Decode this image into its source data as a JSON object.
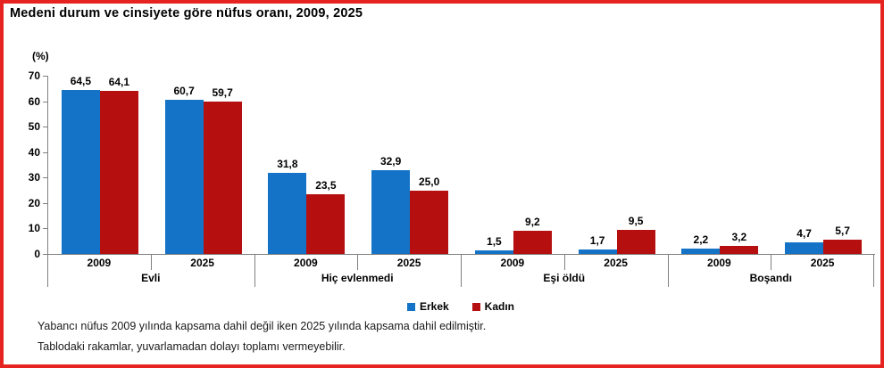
{
  "title": "Medeni durum ve cinsiyete göre nüfus oranı, 2009, 2025",
  "y_unit": "(%)",
  "colors": {
    "erkek": "#1473c6",
    "kadin": "#b50f10",
    "frame_border": "#e5231f",
    "axis": "#808080"
  },
  "legend": {
    "items": [
      {
        "label": "Erkek",
        "color": "#1473c6"
      },
      {
        "label": "Kadın",
        "color": "#b50f10"
      }
    ]
  },
  "footnotes": [
    "Yabancı nüfus 2009 yılında kapsama dahil değil iken 2025 yılında kapsama dahil edilmiştir.",
    "Tablodaki rakamlar, yuvarlamadan dolayı toplamı vermeyebilir."
  ],
  "chart_data": {
    "type": "bar",
    "title": "Medeni durum ve cinsiyete göre nüfus oranı, 2009, 2025",
    "ylabel": "(%)",
    "ylim": [
      0,
      70
    ],
    "yticks": [
      0,
      10,
      20,
      30,
      40,
      50,
      60,
      70
    ],
    "grid": false,
    "legend_position": "bottom-center",
    "series_names": [
      "Erkek",
      "Kadın"
    ],
    "groups": [
      {
        "label": "Evli",
        "cells": [
          {
            "year": "2009",
            "values": [
              64.5,
              64.1
            ],
            "labels": [
              "64,5",
              "64,1"
            ]
          },
          {
            "year": "2025",
            "values": [
              60.7,
              59.7
            ],
            "labels": [
              "60,7",
              "59,7"
            ]
          }
        ]
      },
      {
        "label": "Hiç evlenmedi",
        "cells": [
          {
            "year": "2009",
            "values": [
              31.8,
              23.5
            ],
            "labels": [
              "31,8",
              "23,5"
            ]
          },
          {
            "year": "2025",
            "values": [
              32.9,
              25.0
            ],
            "labels": [
              "32,9",
              "25,0"
            ]
          }
        ]
      },
      {
        "label": "Eşi öldü",
        "cells": [
          {
            "year": "2009",
            "values": [
              1.5,
              9.2
            ],
            "labels": [
              "1,5",
              "9,2"
            ]
          },
          {
            "year": "2025",
            "values": [
              1.7,
              9.5
            ],
            "labels": [
              "1,7",
              "9,5"
            ]
          }
        ]
      },
      {
        "label": "Boşandı",
        "cells": [
          {
            "year": "2009",
            "values": [
              2.2,
              3.2
            ],
            "labels": [
              "2,2",
              "3,2"
            ]
          },
          {
            "year": "2025",
            "values": [
              4.7,
              5.7
            ],
            "labels": [
              "4,7",
              "5,7"
            ]
          }
        ]
      }
    ]
  }
}
